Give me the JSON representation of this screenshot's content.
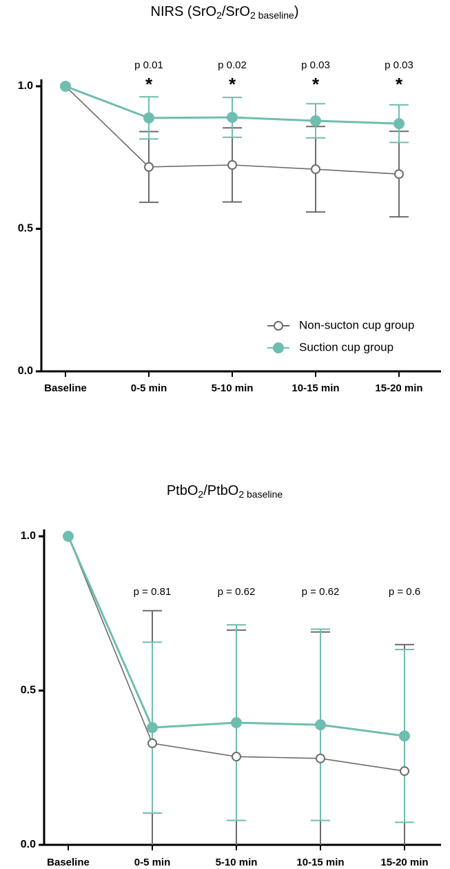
{
  "chart_data": [
    {
      "type": "line",
      "title_parts": [
        {
          "text": "NIRS (SrO"
        },
        {
          "text": "2",
          "sub": true
        },
        {
          "text": "/SrO"
        },
        {
          "text": "2 baseline",
          "sub": true
        },
        {
          "text": ")"
        }
      ],
      "categories": [
        "Baseline",
        "0-5 min",
        "5-10 min",
        "10-15 min",
        "15-20 min"
      ],
      "p_labels": [
        null,
        "p 0.01",
        "p 0.02",
        "p 0.03",
        "p 0.03"
      ],
      "stars": [
        null,
        "*",
        "*",
        "*",
        "*"
      ],
      "ylim": [
        0,
        1
      ],
      "yticks": [
        {
          "value": 0,
          "label": "0.0"
        },
        {
          "value": 0.5,
          "label": "0.5"
        },
        {
          "value": 1,
          "label": "1.0"
        }
      ],
      "legend": "lower right",
      "series": [
        {
          "name": "Non-sucton cup group",
          "color": "#6b6b6b",
          "marker": "open",
          "values": [
            1,
            0.717,
            0.724,
            0.709,
            0.692
          ],
          "errors": [
            null,
            0.124,
            0.13,
            0.15,
            0.15
          ]
        },
        {
          "name": "Suction cup group",
          "color": "#6fbdaf",
          "marker": "filled",
          "values": [
            1,
            0.889,
            0.891,
            0.879,
            0.869
          ],
          "errors": [
            null,
            0.074,
            0.07,
            0.06,
            0.066
          ]
        }
      ]
    },
    {
      "type": "line",
      "title_parts": [
        {
          "text": "PtbO"
        },
        {
          "text": "2",
          "sub": true
        },
        {
          "text": "/PtbO"
        },
        {
          "text": "2 baseline",
          "sub": true
        }
      ],
      "categories": [
        "Baseline",
        "0-5 min",
        "5-10 min",
        "10-15 min",
        "15-20 min"
      ],
      "p_labels": [
        null,
        "p = 0.81",
        "p = 0.62",
        "p = 0.62",
        "p = 0.6"
      ],
      "ylim": [
        0,
        1
      ],
      "yticks": [
        {
          "value": 0,
          "label": "0.0"
        },
        {
          "value": 0.5,
          "label": "0.5"
        },
        {
          "value": 1,
          "label": "1.0"
        }
      ],
      "series": [
        {
          "color": "#6b6b6b",
          "marker": "open",
          "values": [
            1,
            0.329,
            0.286,
            0.28,
            0.239
          ],
          "errors": [
            null,
            0.43,
            0.41,
            0.41,
            0.41
          ]
        },
        {
          "color": "#6fbdaf",
          "marker": "filled",
          "values": [
            1,
            0.38,
            0.396,
            0.389,
            0.353
          ],
          "errors": [
            null,
            0.277,
            0.317,
            0.31,
            0.28
          ]
        }
      ]
    }
  ]
}
